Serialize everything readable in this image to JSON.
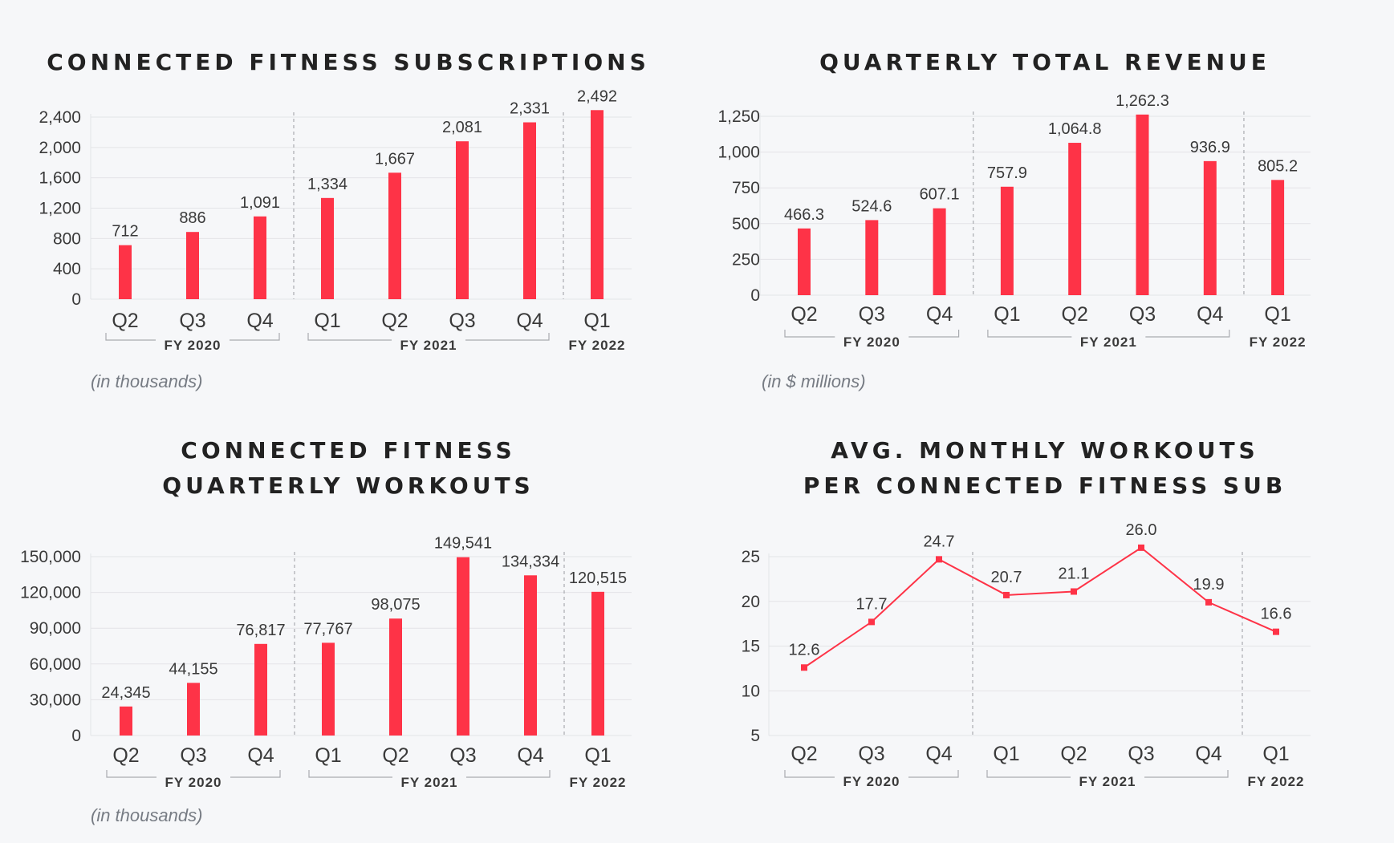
{
  "colors": {
    "bar": "#fe3347",
    "axis_text": "#3a3a3a",
    "grid": "#e3e4e7",
    "divider": "#a9abb0",
    "fy_text": "#3a3a3a"
  },
  "charts": [
    {
      "title_lines": [
        "CONNECTED FITNESS SUBSCRIPTIONS"
      ],
      "note": "(in thousands)"
    },
    {
      "title_lines": [
        "QUARTERLY TOTAL REVENUE"
      ],
      "note": "(in $ millions)"
    },
    {
      "title_lines": [
        "CONNECTED FITNESS",
        "QUARTERLY WORKOUTS"
      ],
      "note": "(in thousands)"
    },
    {
      "title_lines": [
        "AVG. MONTHLY WORKOUTS",
        "PER CONNECTED FITNESS SUB"
      ],
      "note": ""
    }
  ],
  "chart_data": [
    {
      "type": "bar",
      "title": "CONNECTED FITNESS SUBSCRIPTIONS",
      "categories": [
        "Q2",
        "Q3",
        "Q4",
        "Q1",
        "Q2",
        "Q3",
        "Q4",
        "Q1"
      ],
      "groups": [
        {
          "label": "FY 2020",
          "count": 3
        },
        {
          "label": "FY 2021",
          "count": 4
        },
        {
          "label": "FY 2022",
          "count": 1
        }
      ],
      "values": [
        712,
        886,
        1091,
        1334,
        1667,
        2081,
        2331,
        2492
      ],
      "data_labels": [
        "712",
        "886",
        "1,091",
        "1,334",
        "1,667",
        "2,081",
        "2,331",
        "2,492"
      ],
      "yticks": [
        "0",
        "400",
        "800",
        "1,200",
        "1,600",
        "2,000",
        "2,400"
      ],
      "ylim": [
        0,
        2400
      ],
      "grid": true
    },
    {
      "type": "bar",
      "title": "QUARTERLY TOTAL REVENUE",
      "categories": [
        "Q2",
        "Q3",
        "Q4",
        "Q1",
        "Q2",
        "Q3",
        "Q4",
        "Q1"
      ],
      "groups": [
        {
          "label": "FY 2020",
          "count": 3
        },
        {
          "label": "FY 2021",
          "count": 4
        },
        {
          "label": "FY 2022",
          "count": 1
        }
      ],
      "values": [
        466.3,
        524.6,
        607.1,
        757.9,
        1064.8,
        1262.3,
        936.9,
        805.2
      ],
      "data_labels": [
        "466.3",
        "524.6",
        "607.1",
        "757.9",
        "1,064.8",
        "1,262.3",
        "936.9",
        "805.2"
      ],
      "yticks": [
        "0",
        "250",
        "500",
        "750",
        "1,000",
        "1,250"
      ],
      "ylim": [
        0,
        1250
      ],
      "grid": true
    },
    {
      "type": "bar",
      "title": "CONNECTED FITNESS QUARTERLY WORKOUTS",
      "categories": [
        "Q2",
        "Q3",
        "Q4",
        "Q1",
        "Q2",
        "Q3",
        "Q4",
        "Q1"
      ],
      "groups": [
        {
          "label": "FY 2020",
          "count": 3
        },
        {
          "label": "FY 2021",
          "count": 4
        },
        {
          "label": "FY 2022",
          "count": 1
        }
      ],
      "values": [
        24345,
        44155,
        76817,
        77767,
        98075,
        149541,
        134334,
        120515
      ],
      "data_labels": [
        "24,345",
        "44,155",
        "76,817",
        "77,767",
        "98,075",
        "149,541",
        "134,334",
        "120,515"
      ],
      "yticks": [
        "0",
        "30,000",
        "60,000",
        "90,000",
        "120,000",
        "150,000"
      ],
      "ylim": [
        0,
        150000
      ],
      "grid": true
    },
    {
      "type": "line",
      "title": "AVG. MONTHLY WORKOUTS PER CONNECTED FITNESS SUB",
      "categories": [
        "Q2",
        "Q3",
        "Q4",
        "Q1",
        "Q2",
        "Q3",
        "Q4",
        "Q1"
      ],
      "groups": [
        {
          "label": "FY 2020",
          "count": 3
        },
        {
          "label": "FY 2021",
          "count": 4
        },
        {
          "label": "FY 2022",
          "count": 1
        }
      ],
      "values": [
        12.6,
        17.7,
        24.7,
        20.7,
        21.1,
        26.0,
        19.9,
        16.6
      ],
      "data_labels": [
        "12.6",
        "17.7",
        "24.7",
        "20.7",
        "21.1",
        "26.0",
        "19.9",
        "16.6"
      ],
      "yticks": [
        "5",
        "10",
        "15",
        "20",
        "25"
      ],
      "ylim": [
        5,
        25
      ],
      "grid": true
    }
  ]
}
